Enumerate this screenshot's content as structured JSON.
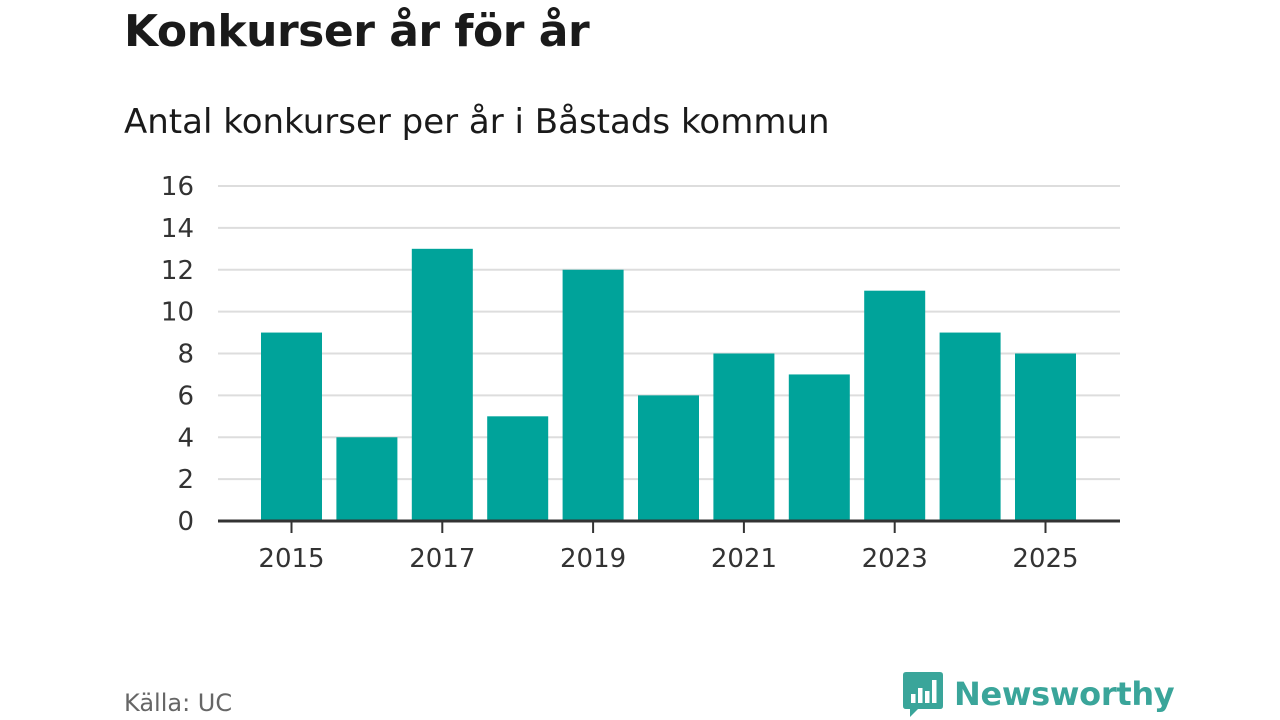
{
  "chart_data": {
    "type": "bar",
    "title": "Konkurser år för år",
    "subtitle": "Antal konkurser per år i Båstads kommun",
    "categories": [
      "2015",
      "2016",
      "2017",
      "2018",
      "2019",
      "2020",
      "2021",
      "2022",
      "2023",
      "2024",
      "2025"
    ],
    "values": [
      9,
      4,
      13,
      5,
      12,
      6,
      8,
      7,
      11,
      9,
      8
    ],
    "xtick_labels": [
      "2015",
      "2017",
      "2019",
      "2021",
      "2023",
      "2025"
    ],
    "yticks": [
      0,
      2,
      4,
      6,
      8,
      10,
      12,
      14,
      16
    ],
    "ylim": [
      0,
      16
    ],
    "xlabel": "",
    "ylabel": "",
    "grid": true,
    "bar_color": "#00a39a",
    "grid_color": "#dddddd",
    "axis_color": "#333333"
  },
  "footer": {
    "source": "Källa: UC",
    "brand": "Newsworthy",
    "brand_icon": "bar-chart-speech-icon",
    "brand_color": "#3aa59a"
  }
}
